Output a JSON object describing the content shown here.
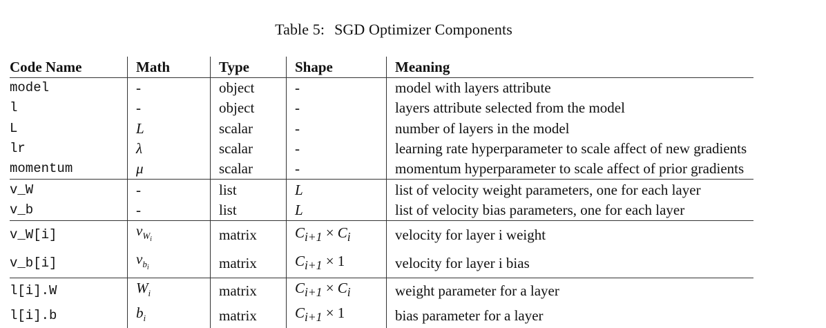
{
  "caption": {
    "label": "Table 5:",
    "title": "SGD Optimizer Components"
  },
  "table": {
    "headers": {
      "code": "Code Name",
      "math": "Math",
      "type": "Type",
      "shape": "Shape",
      "meaning": "Meaning"
    },
    "rows": [
      {
        "code": "model",
        "math": "-",
        "type": "object",
        "shape": "-",
        "meaning": "model with layers attribute"
      },
      {
        "code": "l",
        "math": "-",
        "type": "object",
        "shape": "-",
        "meaning": "layers attribute selected from the model"
      },
      {
        "code": "L",
        "math": "L",
        "type": "scalar",
        "shape": "-",
        "meaning": "number of layers in the model"
      },
      {
        "code": "lr",
        "math": "λ",
        "type": "scalar",
        "shape": "-",
        "meaning": "learning rate hyperparameter to scale affect of new gradients"
      },
      {
        "code": "momentum",
        "math": "μ",
        "type": "scalar",
        "shape": "-",
        "meaning": "momentum hyperparameter to scale affect of prior gradients"
      },
      {
        "code": "v_W",
        "math": "-",
        "type": "list",
        "shape": "L",
        "meaning": "list of velocity weight parameters, one for each layer"
      },
      {
        "code": "v_b",
        "math": "-",
        "type": "list",
        "shape": "L",
        "meaning": "list of velocity bias parameters, one for each layer"
      },
      {
        "code": "v_W[i]",
        "math_base": "v",
        "math_sub": "W",
        "math_subsub": "i",
        "type": "matrix",
        "shape_base": "C",
        "shape_sub": "i+1",
        "shape_op": " × ",
        "shape_tail_base": "C",
        "shape_tail_sub": "i",
        "meaning": "velocity for layer i weight"
      },
      {
        "code": "v_b[i]",
        "math_base": "v",
        "math_sub": "b",
        "math_subsub": "i",
        "type": "matrix",
        "shape_base": "C",
        "shape_sub": "i+1",
        "shape_op": " × 1",
        "meaning": "velocity for layer i bias"
      },
      {
        "code": "l[i].W",
        "math_base": "W",
        "math_sub": "i",
        "type": "matrix",
        "shape_base": "C",
        "shape_sub": "i+1",
        "shape_op": " × ",
        "shape_tail_base": "C",
        "shape_tail_sub": "i",
        "meaning": "weight parameter for a layer"
      },
      {
        "code": "l[i].b",
        "math_base": "b",
        "math_sub": "i",
        "type": "matrix",
        "shape_base": "C",
        "shape_sub": "i+1",
        "shape_op": " × 1",
        "meaning": "bias parameter for a layer"
      }
    ]
  }
}
